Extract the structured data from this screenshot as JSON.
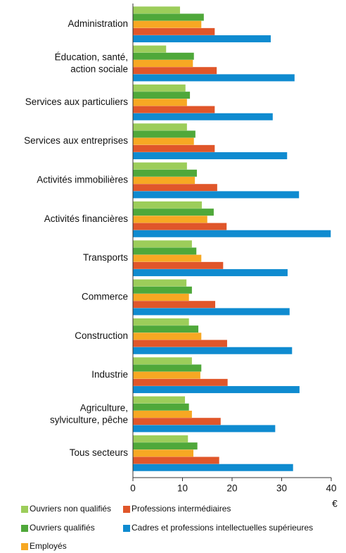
{
  "chart_data": {
    "type": "bar",
    "orientation": "horizontal",
    "categories": [
      "Administration",
      "Éducation, santé,\naction sociale",
      "Services aux particuliers",
      "Services aux entreprises",
      "Activités immobilières",
      "Activités financières",
      "Transports",
      "Commerce",
      "Construction",
      "Industrie",
      "Agriculture,\nsylviculture, pêche",
      "Tous secteurs"
    ],
    "series": [
      {
        "name": "Ouvriers non qualifiés",
        "color": "#9ccd5a",
        "values": [
          9.5,
          6.7,
          10.6,
          10.9,
          10.9,
          13.9,
          11.9,
          10.8,
          11.3,
          11.9,
          10.5,
          11.1
        ]
      },
      {
        "name": "Ouvriers qualifiés",
        "color": "#4fa83a",
        "values": [
          14.3,
          12.3,
          11.5,
          12.6,
          12.9,
          16.3,
          12.8,
          11.9,
          13.2,
          13.8,
          11.3,
          13.0
        ]
      },
      {
        "name": "Employés",
        "color": "#f7a823",
        "values": [
          13.8,
          12.1,
          10.9,
          12.3,
          12.5,
          15.0,
          13.8,
          11.3,
          13.8,
          13.6,
          11.9,
          12.2
        ]
      },
      {
        "name": "Professions intermédiaires",
        "color": "#e0562a",
        "values": [
          16.5,
          16.9,
          16.5,
          16.5,
          17.0,
          18.9,
          18.2,
          16.6,
          19.0,
          19.1,
          17.7,
          17.4
        ]
      },
      {
        "name": "Cadres et professions intellectuelles supérieures",
        "color": "#0f8bd0",
        "values": [
          27.8,
          32.6,
          28.2,
          31.1,
          33.5,
          39.9,
          31.2,
          31.6,
          32.1,
          33.6,
          28.7,
          32.3
        ]
      }
    ],
    "x_label": "€",
    "xlim": [
      0,
      40
    ],
    "xticks": [
      0,
      10,
      20,
      30,
      40
    ],
    "grid": false
  }
}
